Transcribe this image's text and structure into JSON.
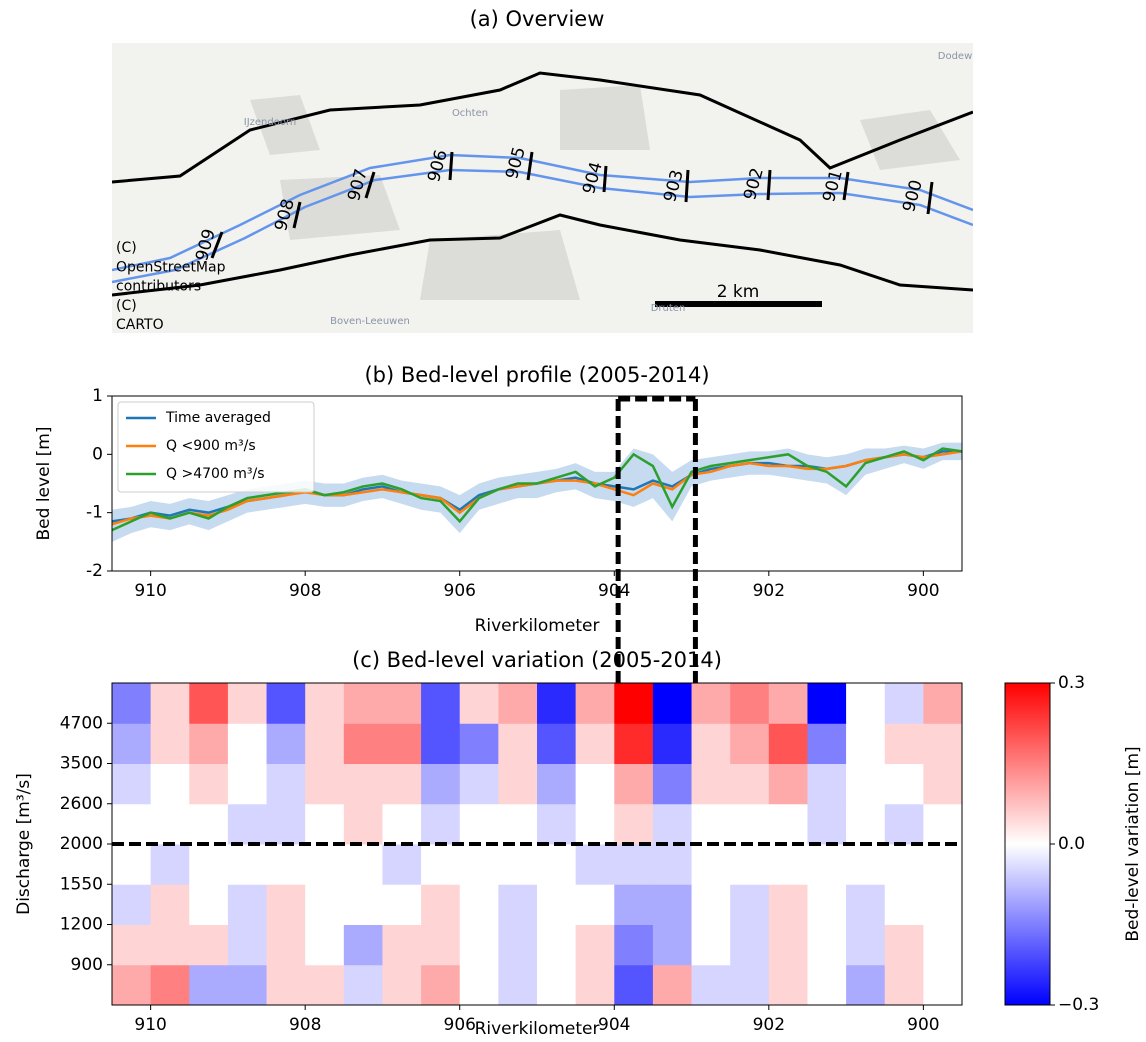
{
  "chart_data": [
    {
      "type": "map",
      "title": "(a) Overview",
      "place_labels": [
        "IJzendoorn",
        "Ochten",
        "Dodew",
        "Boven-Leeuwen",
        "Druten"
      ],
      "km_labels": [
        "909",
        "908",
        "907",
        "906",
        "905",
        "904",
        "903",
        "902",
        "901",
        "900"
      ],
      "scale_bar_label": "2 km",
      "attribution": [
        "(C)",
        "OpenStreetMap",
        "contributors",
        "(C)",
        "CARTO"
      ]
    },
    {
      "type": "line",
      "title": "(b) Bed-level profile (2005-2014)",
      "x_label": "Riverkilometer",
      "y_label": "Bed level [m]",
      "xlim": [
        910.5,
        899.5
      ],
      "xticks": [
        910,
        908,
        906,
        904,
        902,
        900
      ],
      "ylim": [
        -2,
        1
      ],
      "yticks": [
        -2,
        -1,
        0,
        1
      ],
      "legend": "upper left",
      "x": [
        910.5,
        910.25,
        910,
        909.75,
        909.5,
        909.25,
        909,
        908.75,
        908.5,
        908.25,
        908,
        907.75,
        907.5,
        907.25,
        907,
        906.75,
        906.5,
        906.25,
        906,
        905.75,
        905.5,
        905.25,
        905,
        904.75,
        904.5,
        904.25,
        904,
        903.75,
        903.5,
        903.25,
        903,
        902.75,
        902.5,
        902.25,
        902,
        901.75,
        901.5,
        901.25,
        901,
        900.75,
        900.5,
        900.25,
        900,
        899.75,
        899.5
      ],
      "band": {
        "color": "#c6dbef",
        "upper": [
          -0.95,
          -0.9,
          -0.8,
          -0.85,
          -0.75,
          -0.8,
          -0.7,
          -0.6,
          -0.55,
          -0.5,
          -0.45,
          -0.5,
          -0.5,
          -0.4,
          -0.35,
          -0.45,
          -0.5,
          -0.55,
          -0.7,
          -0.5,
          -0.4,
          -0.35,
          -0.3,
          -0.25,
          -0.15,
          -0.3,
          -0.3,
          0.1,
          0.0,
          -0.3,
          -0.1,
          -0.05,
          0.0,
          0.05,
          0.05,
          0.1,
          0.0,
          -0.05,
          0.0,
          0.1,
          0.1,
          0.15,
          0.1,
          0.2,
          0.2
        ],
        "lower": [
          -1.5,
          -1.35,
          -1.25,
          -1.3,
          -1.2,
          -1.3,
          -1.15,
          -1.0,
          -0.95,
          -0.9,
          -0.85,
          -0.9,
          -0.9,
          -0.8,
          -0.75,
          -0.85,
          -0.95,
          -1.0,
          -1.35,
          -0.95,
          -0.85,
          -0.75,
          -0.75,
          -0.65,
          -0.6,
          -0.75,
          -0.8,
          -0.9,
          -0.75,
          -1.15,
          -0.55,
          -0.45,
          -0.4,
          -0.35,
          -0.35,
          -0.4,
          -0.45,
          -0.5,
          -0.7,
          -0.35,
          -0.25,
          -0.15,
          -0.25,
          -0.1,
          -0.1
        ]
      },
      "series": [
        {
          "name": "Time averaged",
          "color": "#1f77b4",
          "values": [
            -1.15,
            -1.1,
            -1.0,
            -1.05,
            -0.95,
            -1.0,
            -0.9,
            -0.8,
            -0.75,
            -0.7,
            -0.6,
            -0.7,
            -0.7,
            -0.6,
            -0.55,
            -0.65,
            -0.7,
            -0.75,
            -0.95,
            -0.7,
            -0.6,
            -0.55,
            -0.5,
            -0.45,
            -0.4,
            -0.5,
            -0.55,
            -0.6,
            -0.45,
            -0.55,
            -0.35,
            -0.25,
            -0.2,
            -0.15,
            -0.15,
            -0.2,
            -0.2,
            -0.25,
            -0.2,
            -0.1,
            -0.05,
            0.0,
            -0.05,
            0.05,
            0.05
          ]
        },
        {
          "name": "Q <900 m³/s",
          "color": "#ff7f0e",
          "values": [
            -1.2,
            -1.1,
            -1.05,
            -1.1,
            -1.0,
            -1.05,
            -0.95,
            -0.8,
            -0.75,
            -0.7,
            -0.65,
            -0.7,
            -0.7,
            -0.65,
            -0.6,
            -0.65,
            -0.7,
            -0.75,
            -1.0,
            -0.75,
            -0.6,
            -0.55,
            -0.5,
            -0.45,
            -0.45,
            -0.5,
            -0.6,
            -0.7,
            -0.5,
            -0.6,
            -0.35,
            -0.3,
            -0.2,
            -0.15,
            -0.2,
            -0.2,
            -0.25,
            -0.25,
            -0.2,
            -0.1,
            -0.05,
            0.0,
            -0.05,
            0.0,
            0.05
          ]
        },
        {
          "name": "Q >4700 m³/s",
          "color": "#2ca02c",
          "values": [
            -1.3,
            -1.15,
            -1.0,
            -1.1,
            -1.0,
            -1.1,
            -0.9,
            -0.75,
            -0.7,
            -0.65,
            -0.6,
            -0.7,
            -0.65,
            -0.55,
            -0.5,
            -0.6,
            -0.75,
            -0.8,
            -1.15,
            -0.75,
            -0.6,
            -0.5,
            -0.5,
            -0.4,
            -0.3,
            -0.55,
            -0.4,
            0.0,
            -0.2,
            -0.9,
            -0.3,
            -0.2,
            -0.15,
            -0.1,
            -0.05,
            0.0,
            -0.2,
            -0.3,
            -0.55,
            -0.15,
            -0.05,
            0.05,
            -0.1,
            0.1,
            0.05
          ]
        }
      ],
      "highlight_xrange": [
        903.95,
        902.95
      ]
    },
    {
      "type": "heatmap",
      "title": "(c) Bed-level variation (2005-2014)",
      "x_label": "Riverkilometer",
      "y_label": "Discharge [m³/s]",
      "xlim": [
        910.5,
        899.5
      ],
      "xticks": [
        910,
        908,
        906,
        904,
        902,
        900
      ],
      "x_edges": [
        910.5,
        910,
        909.5,
        909,
        908.5,
        908,
        907.5,
        907,
        906.5,
        906,
        905.5,
        905,
        904.5,
        904,
        903.5,
        903,
        902.5,
        902,
        901.5,
        901,
        900.5,
        900,
        899.5
      ],
      "ylim": [
        0,
        8
      ],
      "yticks": [
        {
          "value": 1,
          "label": "900"
        },
        {
          "value": 2,
          "label": "1200"
        },
        {
          "value": 3,
          "label": "1550"
        },
        {
          "value": 4,
          "label": "2000"
        },
        {
          "value": 5,
          "label": "2600"
        },
        {
          "value": 6,
          "label": "3500"
        },
        {
          "value": 7,
          "label": "4700"
        }
      ],
      "z": [
        [
          0.1,
          0.15,
          -0.1,
          -0.1,
          0.05,
          0.05,
          -0.05,
          0.05,
          0.1,
          0.0,
          -0.05,
          0.0,
          0.05,
          -0.2,
          0.1,
          -0.05,
          -0.05,
          0.05,
          0.0,
          -0.1,
          0.05,
          0.0
        ],
        [
          0.05,
          0.05,
          0.05,
          -0.05,
          0.05,
          0.0,
          -0.1,
          0.05,
          0.05,
          0.0,
          -0.05,
          0.0,
          0.05,
          -0.15,
          -0.1,
          0.0,
          -0.05,
          0.05,
          0.0,
          -0.05,
          0.05,
          0.0
        ],
        [
          -0.05,
          0.05,
          0.0,
          -0.05,
          0.05,
          0.0,
          0.0,
          0.0,
          0.05,
          0.0,
          -0.05,
          0.0,
          0.0,
          -0.1,
          -0.1,
          0.0,
          -0.05,
          0.05,
          0.0,
          -0.05,
          0.0,
          0.0
        ],
        [
          0.0,
          -0.05,
          0.0,
          0.0,
          0.0,
          0.0,
          0.0,
          -0.05,
          0.0,
          0.0,
          0.0,
          0.0,
          -0.05,
          -0.05,
          -0.05,
          0.0,
          0.0,
          0.0,
          0.0,
          0.0,
          0.0,
          0.0
        ],
        [
          0.0,
          0.0,
          0.0,
          -0.05,
          -0.05,
          0.0,
          0.05,
          0.0,
          -0.05,
          0.0,
          0.0,
          -0.05,
          0.0,
          0.05,
          -0.05,
          0.0,
          0.0,
          0.0,
          -0.05,
          0.0,
          -0.05,
          0.0
        ],
        [
          -0.05,
          0.0,
          0.05,
          0.0,
          -0.05,
          0.05,
          0.05,
          0.05,
          -0.1,
          -0.05,
          0.05,
          -0.1,
          0.0,
          0.1,
          -0.15,
          0.05,
          0.05,
          0.1,
          -0.05,
          0.0,
          0.0,
          0.05
        ],
        [
          -0.1,
          0.05,
          0.1,
          0.0,
          -0.1,
          0.05,
          0.15,
          0.15,
          -0.2,
          -0.15,
          0.05,
          -0.2,
          0.05,
          0.25,
          -0.25,
          0.05,
          0.1,
          0.2,
          -0.15,
          0.0,
          0.05,
          0.05
        ],
        [
          -0.15,
          0.05,
          0.2,
          0.05,
          -0.2,
          0.05,
          0.1,
          0.1,
          -0.2,
          0.05,
          0.1,
          -0.25,
          0.1,
          0.3,
          -0.3,
          0.1,
          0.15,
          0.1,
          -0.3,
          0.0,
          -0.05,
          0.1
        ]
      ],
      "colormap": "bwr",
      "clim": [
        -0.3,
        0.3
      ],
      "colorbar_ticks": [
        {
          "value": -0.3,
          "label": "−0.3"
        },
        {
          "value": 0,
          "label": "0.0"
        },
        {
          "value": 0.3,
          "label": "0.3"
        }
      ],
      "colorbar_label": "Bed-level variation [m]",
      "hline": 4
    }
  ]
}
